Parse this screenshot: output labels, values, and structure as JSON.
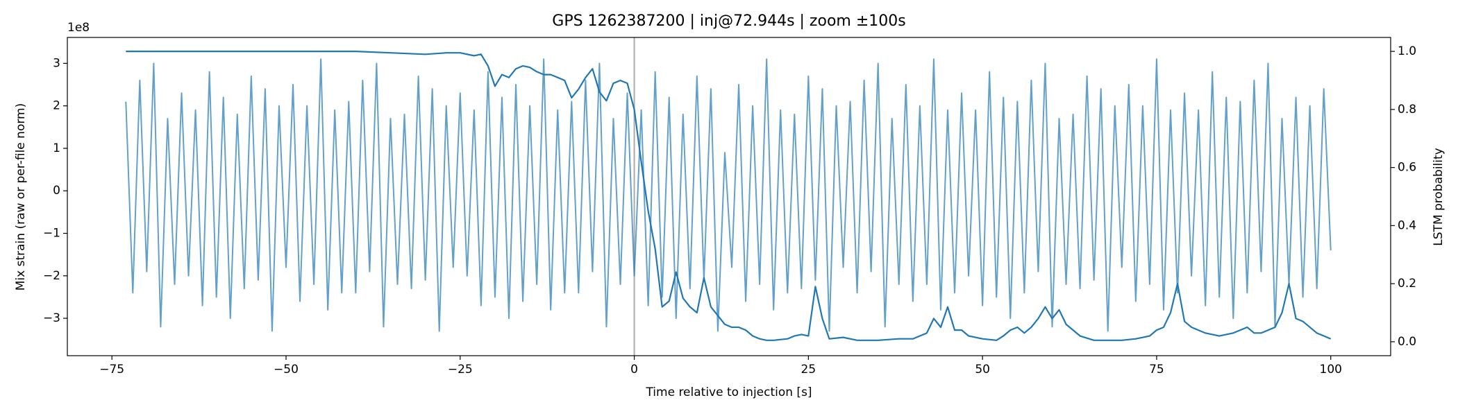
{
  "chart_data": {
    "type": "line",
    "title": "GPS 1262387200 | inj@72.944s | zoom ±100s",
    "xlabel": "Time relative to injection [s]",
    "ylabel": "Mix strain (raw or per-file norm)",
    "y2label": "LSTM probability",
    "y_offset_label": "1e8",
    "xlim": [
      -81.4,
      108.6
    ],
    "xticks": [
      {
        "value": -75,
        "label": "−75"
      },
      {
        "value": -50,
        "label": "−50"
      },
      {
        "value": -25,
        "label": "−25"
      },
      0,
      25,
      50,
      75,
      100
    ],
    "ylim": [
      -3.88,
      3.61
    ],
    "yticks": [
      {
        "value": -3,
        "label": "−3"
      },
      {
        "value": -2,
        "label": "−2"
      },
      {
        "value": -1,
        "label": "−1"
      },
      0,
      1,
      2,
      3
    ],
    "y2lim": [
      -0.048,
      1.048
    ],
    "y2ticks": [
      {
        "value": 0,
        "label": "0.0"
      },
      0.2,
      0.4,
      0.6,
      0.8,
      {
        "value": 1,
        "label": "1.0"
      }
    ],
    "vline": 0,
    "vline_color": "#aaaaaa",
    "grid": false,
    "series": [
      {
        "color": "#1f77b4",
        "alpha": 0.7,
        "axis": "y",
        "x": [
          -73,
          -72,
          -71,
          -70,
          -69,
          -68,
          -67,
          -66,
          -65,
          -64,
          -63,
          -62,
          -61,
          -60,
          -59,
          -58,
          -57,
          -56,
          -55,
          -54,
          -53,
          -52,
          -51,
          -50,
          -49,
          -48,
          -47,
          -46,
          -45,
          -44,
          -43,
          -42,
          -41,
          -40,
          -39,
          -38,
          -37,
          -36,
          -35,
          -34,
          -33,
          -32,
          -31,
          -30,
          -29,
          -28,
          -27,
          -26,
          -25,
          -24,
          -23,
          -22,
          -21,
          -20,
          -19,
          -18,
          -17,
          -16,
          -15,
          -14,
          -13,
          -12,
          -11,
          -10,
          -9,
          -8,
          -7,
          -6,
          -5,
          -4,
          -3,
          -2,
          -1,
          0,
          1,
          2,
          3,
          4,
          5,
          6,
          7,
          8,
          9,
          10,
          11,
          12,
          13,
          14,
          15,
          16,
          17,
          18,
          19,
          20,
          21,
          22,
          23,
          24,
          25,
          26,
          27,
          28,
          29,
          30,
          31,
          32,
          33,
          34,
          35,
          36,
          37,
          38,
          39,
          40,
          41,
          42,
          43,
          44,
          45,
          46,
          47,
          48,
          49,
          50,
          51,
          52,
          53,
          54,
          55,
          56,
          57,
          58,
          59,
          60,
          61,
          62,
          63,
          64,
          65,
          66,
          67,
          68,
          69,
          70,
          71,
          72,
          73,
          74,
          75,
          76,
          77,
          78,
          79,
          80,
          81,
          82,
          83,
          84,
          85,
          86,
          87,
          88,
          89,
          90,
          91,
          92,
          93,
          94,
          95,
          96,
          97,
          98,
          99,
          100
        ],
        "values": [
          2.1,
          -2.4,
          2.6,
          -1.9,
          3.0,
          -3.2,
          1.7,
          -2.2,
          2.3,
          -2.0,
          1.9,
          -2.7,
          2.8,
          -2.5,
          2.2,
          -3.0,
          1.8,
          -2.3,
          2.7,
          -2.1,
          2.4,
          -3.3,
          2.0,
          -1.8,
          2.5,
          -2.6,
          2.0,
          -2.2,
          3.1,
          -2.8,
          1.9,
          -2.4,
          2.1,
          -2.4,
          2.6,
          -1.9,
          3.0,
          -3.2,
          1.7,
          -2.2,
          1.8,
          -2.3,
          2.7,
          -2.1,
          2.4,
          -3.3,
          2.0,
          -1.8,
          2.3,
          -2.0,
          1.9,
          -2.7,
          2.8,
          -2.5,
          2.2,
          -3.0,
          2.5,
          -2.6,
          2.0,
          -2.2,
          3.1,
          -2.8,
          1.9,
          -2.4,
          2.1,
          -2.4,
          2.6,
          -1.9,
          3.0,
          -3.2,
          1.7,
          -2.2,
          2.3,
          -2.0,
          1.9,
          -2.7,
          2.8,
          -2.5,
          2.2,
          -3.0,
          1.8,
          -2.3,
          2.7,
          -2.1,
          2.4,
          -3.3,
          0.9,
          -1.8,
          2.5,
          -2.6,
          2.0,
          -2.2,
          3.1,
          -2.8,
          1.9,
          -2.4,
          1.8,
          -2.3,
          2.7,
          -2.1,
          2.4,
          -3.3,
          2.0,
          -1.8,
          2.1,
          -2.4,
          2.6,
          -1.9,
          3.0,
          -3.2,
          1.7,
          -2.2,
          2.5,
          -2.6,
          2.0,
          -2.2,
          3.1,
          -2.8,
          1.9,
          -2.4,
          2.3,
          -2.0,
          1.9,
          -2.7,
          2.8,
          -2.5,
          2.2,
          -3.0,
          2.1,
          -2.4,
          2.6,
          -1.9,
          3.0,
          -3.2,
          1.7,
          -2.2,
          1.8,
          -2.3,
          2.7,
          -2.1,
          2.4,
          -3.3,
          2.0,
          -1.8,
          2.5,
          -2.6,
          2.0,
          -2.2,
          3.1,
          -2.8,
          1.9,
          -2.4,
          2.3,
          -2.0,
          1.9,
          -2.7,
          2.8,
          -2.5,
          2.2,
          -3.0,
          2.1,
          -2.4,
          2.6,
          -1.9,
          3.0,
          -3.2,
          1.7,
          -2.2,
          2.2,
          -2.5,
          2.0,
          -2.3,
          2.4,
          -1.4
        ]
      },
      {
        "color": "#1f77b4",
        "alpha": 1,
        "axis": "y2",
        "x": [
          -73,
          -70,
          -65,
          -60,
          -55,
          -50,
          -45,
          -40,
          -35,
          -30,
          -27,
          -25,
          -23,
          -22,
          -21,
          -20,
          -19,
          -18,
          -17,
          -16,
          -15,
          -14,
          -13,
          -12,
          -11,
          -10,
          -9,
          -8,
          -7,
          -6,
          -5,
          -4,
          -3,
          -2,
          -1,
          0,
          1,
          2,
          3,
          4,
          5,
          6,
          7,
          8,
          9,
          10,
          11,
          12,
          13,
          14,
          15,
          16,
          17,
          18,
          19,
          20,
          22,
          23,
          24,
          25,
          26,
          27,
          28,
          30,
          32,
          35,
          38,
          40,
          42,
          43,
          44,
          45,
          46,
          47,
          48,
          50,
          52,
          53,
          54,
          55,
          56,
          57,
          58,
          59,
          60,
          61,
          62,
          64,
          66,
          68,
          70,
          72,
          74,
          75,
          76,
          77,
          78,
          79,
          80,
          82,
          84,
          86,
          88,
          89,
          90,
          92,
          93,
          94,
          95,
          96,
          97,
          98,
          99,
          100
        ],
        "values": [
          1.0,
          1.0,
          1.0,
          1.0,
          1.0,
          1.0,
          1.0,
          1.0,
          0.995,
          0.99,
          0.995,
          0.995,
          0.985,
          0.99,
          0.95,
          0.88,
          0.92,
          0.91,
          0.94,
          0.95,
          0.945,
          0.93,
          0.92,
          0.92,
          0.91,
          0.9,
          0.84,
          0.87,
          0.91,
          0.94,
          0.86,
          0.83,
          0.89,
          0.9,
          0.89,
          0.8,
          0.62,
          0.45,
          0.32,
          0.12,
          0.14,
          0.24,
          0.15,
          0.12,
          0.1,
          0.22,
          0.12,
          0.09,
          0.06,
          0.05,
          0.05,
          0.04,
          0.02,
          0.01,
          0.005,
          0.005,
          0.01,
          0.02,
          0.025,
          0.02,
          0.19,
          0.08,
          0.01,
          0.015,
          0.005,
          0.005,
          0.01,
          0.01,
          0.03,
          0.08,
          0.05,
          0.12,
          0.04,
          0.04,
          0.02,
          0.01,
          0.005,
          0.02,
          0.04,
          0.05,
          0.03,
          0.05,
          0.08,
          0.12,
          0.08,
          0.11,
          0.06,
          0.02,
          0.005,
          0.005,
          0.005,
          0.01,
          0.02,
          0.04,
          0.05,
          0.1,
          0.2,
          0.07,
          0.05,
          0.03,
          0.02,
          0.03,
          0.05,
          0.03,
          0.03,
          0.05,
          0.1,
          0.2,
          0.08,
          0.07,
          0.05,
          0.03,
          0.02,
          0.01
        ]
      }
    ]
  }
}
